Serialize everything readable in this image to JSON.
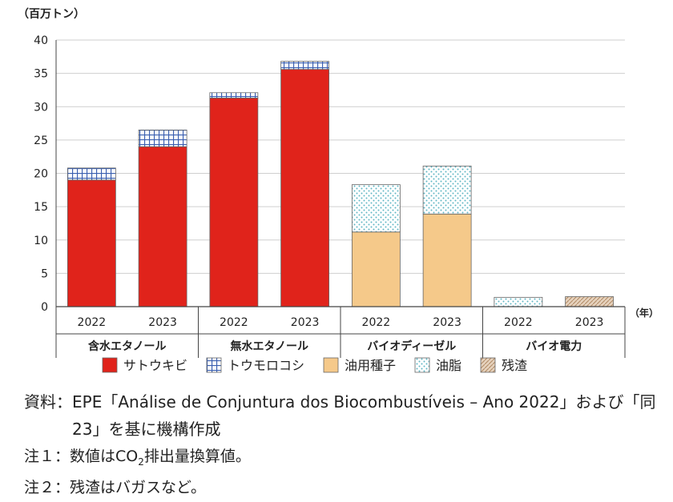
{
  "chart_data": {
    "type": "bar",
    "stacked": true,
    "y_unit": "（百万トン）",
    "x_unit": "（年）",
    "ylim": [
      0,
      40
    ],
    "yticks": [
      0,
      5,
      10,
      15,
      20,
      25,
      30,
      35,
      40
    ],
    "grid": true,
    "legend_position": "bottom",
    "groups": [
      {
        "label": "含水エタノール",
        "years": [
          "2022",
          "2023"
        ]
      },
      {
        "label": "無水エタノール",
        "years": [
          "2022",
          "2023"
        ]
      },
      {
        "label": "バイオディーゼル",
        "years": [
          "2022",
          "2023"
        ]
      },
      {
        "label": "バイオ電力",
        "years": [
          "2022",
          "2023"
        ]
      }
    ],
    "series": [
      {
        "name": "サトウキビ",
        "color": "#e0231b",
        "pattern": "solid",
        "values": [
          19.0,
          24.0,
          31.3,
          35.6,
          0,
          0,
          0,
          0
        ]
      },
      {
        "name": "トウモロコシ",
        "color": "#3a5fb0",
        "pattern": "grid",
        "values": [
          1.8,
          2.5,
          0.8,
          1.2,
          0,
          0,
          0,
          0
        ]
      },
      {
        "name": "油用種子",
        "color": "#f5c98a",
        "pattern": "solid",
        "values": [
          0,
          0,
          0,
          0,
          11.2,
          13.9,
          0,
          0
        ]
      },
      {
        "name": "油脂",
        "color": "#7ec8d3",
        "pattern": "dots",
        "values": [
          0,
          0,
          0,
          0,
          7.1,
          7.2,
          1.4,
          0
        ]
      },
      {
        "name": "残渣",
        "color": "#c9a98a",
        "pattern": "hatch",
        "values": [
          0,
          0,
          0,
          0,
          0,
          0,
          0,
          1.5
        ]
      }
    ]
  },
  "notes": {
    "source_prefix": "資料：",
    "source_text": "EPE「Análise de Conjuntura dos Biocombustíveis – Ano 2022」および「同23」を基に機構作成",
    "note1_prefix": "注１：数値は",
    "note1_co": "CO",
    "note1_sub": "2",
    "note1_rest": "排出量換算値。",
    "note2": "注２：残渣はバガスなど。"
  }
}
